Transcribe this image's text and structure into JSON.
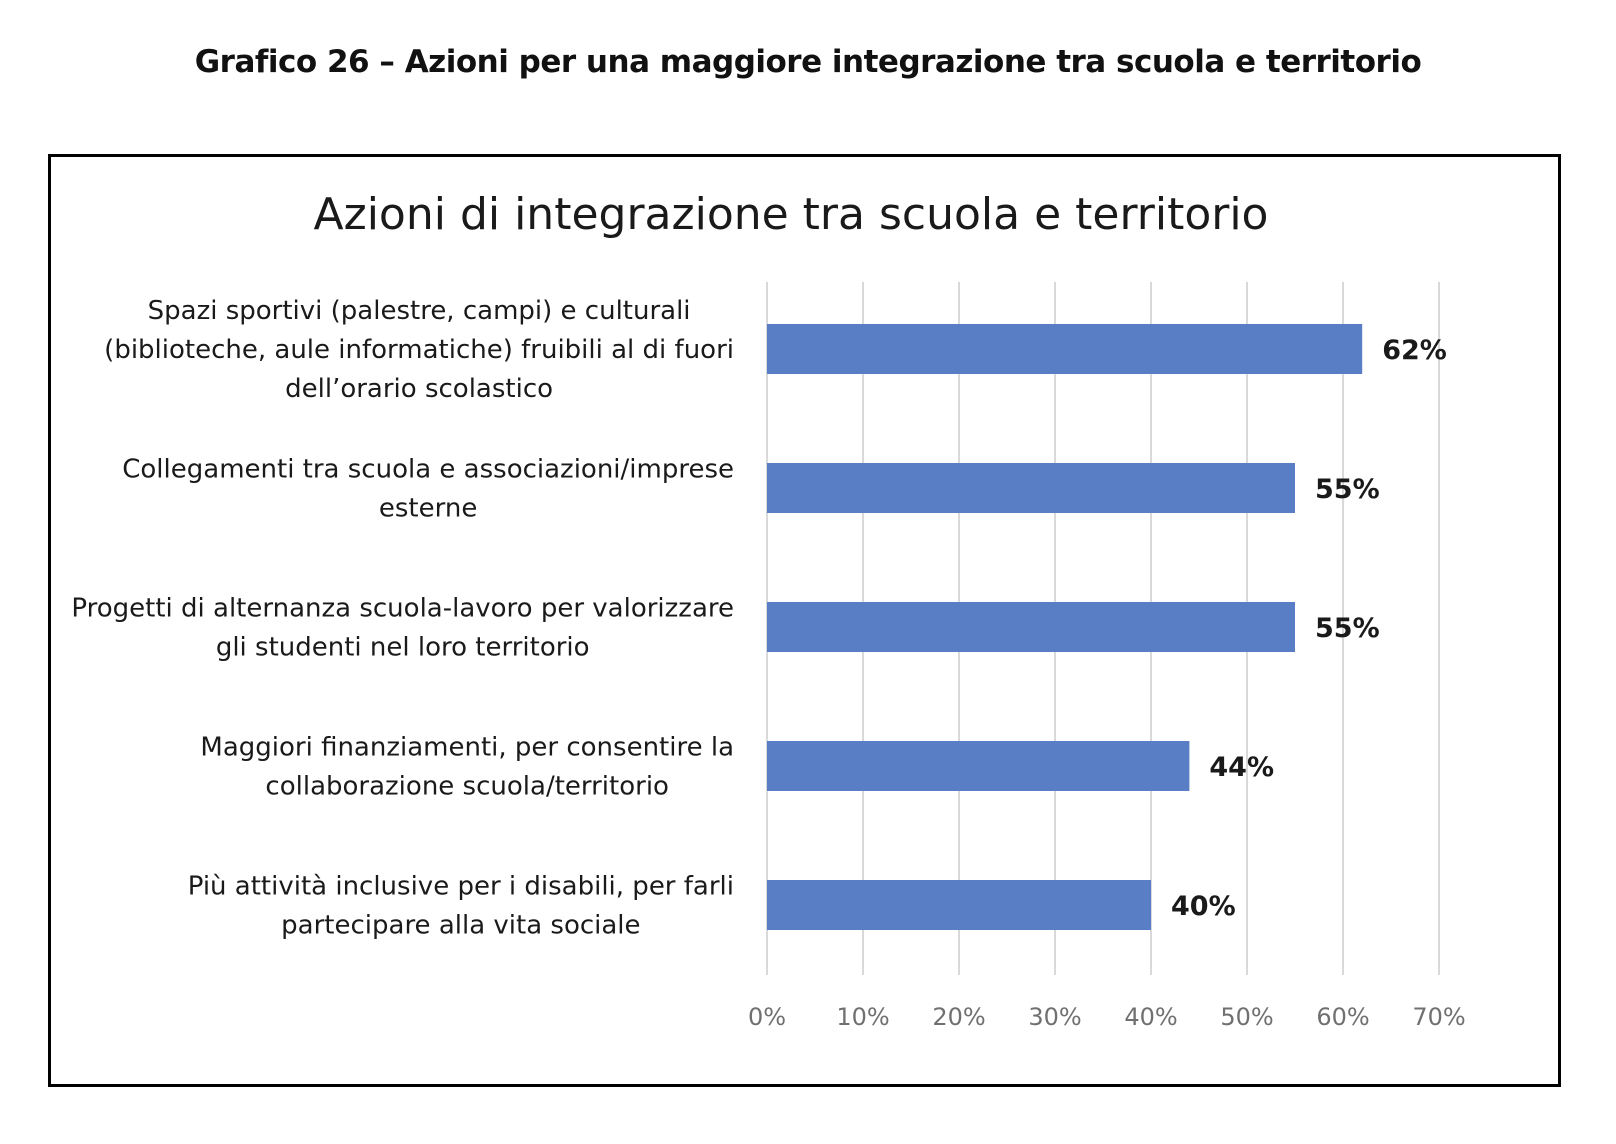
{
  "caption": "Grafico 26 – Azioni per una maggiore integrazione tra scuola e territorio",
  "colors": {
    "bar": "#5a7ec5",
    "grid": "#d9d9d9",
    "frame": "#000000"
  },
  "chart_data": {
    "type": "bar",
    "orientation": "horizontal",
    "title": "Azioni di integrazione tra scuola e territorio",
    "xlabel": "",
    "ylabel": "",
    "categories": [
      "Spazi sportivi (palestre, campi) e culturali (biblioteche, aule informatiche) fruibili al di fuori dell’orario scolastico",
      "Collegamenti tra scuola e associazioni/imprese esterne",
      "Progetti di alternanza scuola-lavoro per valorizzare gli studenti nel loro territorio",
      "Maggiori finanziamenti, per consentire la collaborazione scuola/territorio",
      "Più attività inclusive per i disabili, per farli partecipare alla vita sociale"
    ],
    "category_lines": [
      [
        "Spazi sportivi (palestre, campi) e culturali",
        "(biblioteche, aule informatiche) fruibili al di fuori",
        "dell’orario scolastico"
      ],
      [
        "Collegamenti tra scuola e associazioni/imprese",
        "esterne"
      ],
      [
        "Progetti di alternanza scuola-lavoro per valorizzare",
        "gli studenti nel loro territorio"
      ],
      [
        "Maggiori finanziamenti, per consentire la",
        "collaborazione scuola/territorio"
      ],
      [
        "Più attività inclusive per i disabili, per farli",
        "partecipare alla vita sociale"
      ]
    ],
    "values": [
      62,
      55,
      55,
      44,
      40
    ],
    "data_labels": [
      "62%",
      "55%",
      "55%",
      "44%",
      "40%"
    ],
    "xlim": [
      0,
      70
    ],
    "x_ticks": [
      0,
      10,
      20,
      30,
      40,
      50,
      60,
      70
    ],
    "x_tick_labels": [
      "0%",
      "10%",
      "20%",
      "30%",
      "40%",
      "50%",
      "60%",
      "70%"
    ],
    "grid": true,
    "legend": "none"
  }
}
